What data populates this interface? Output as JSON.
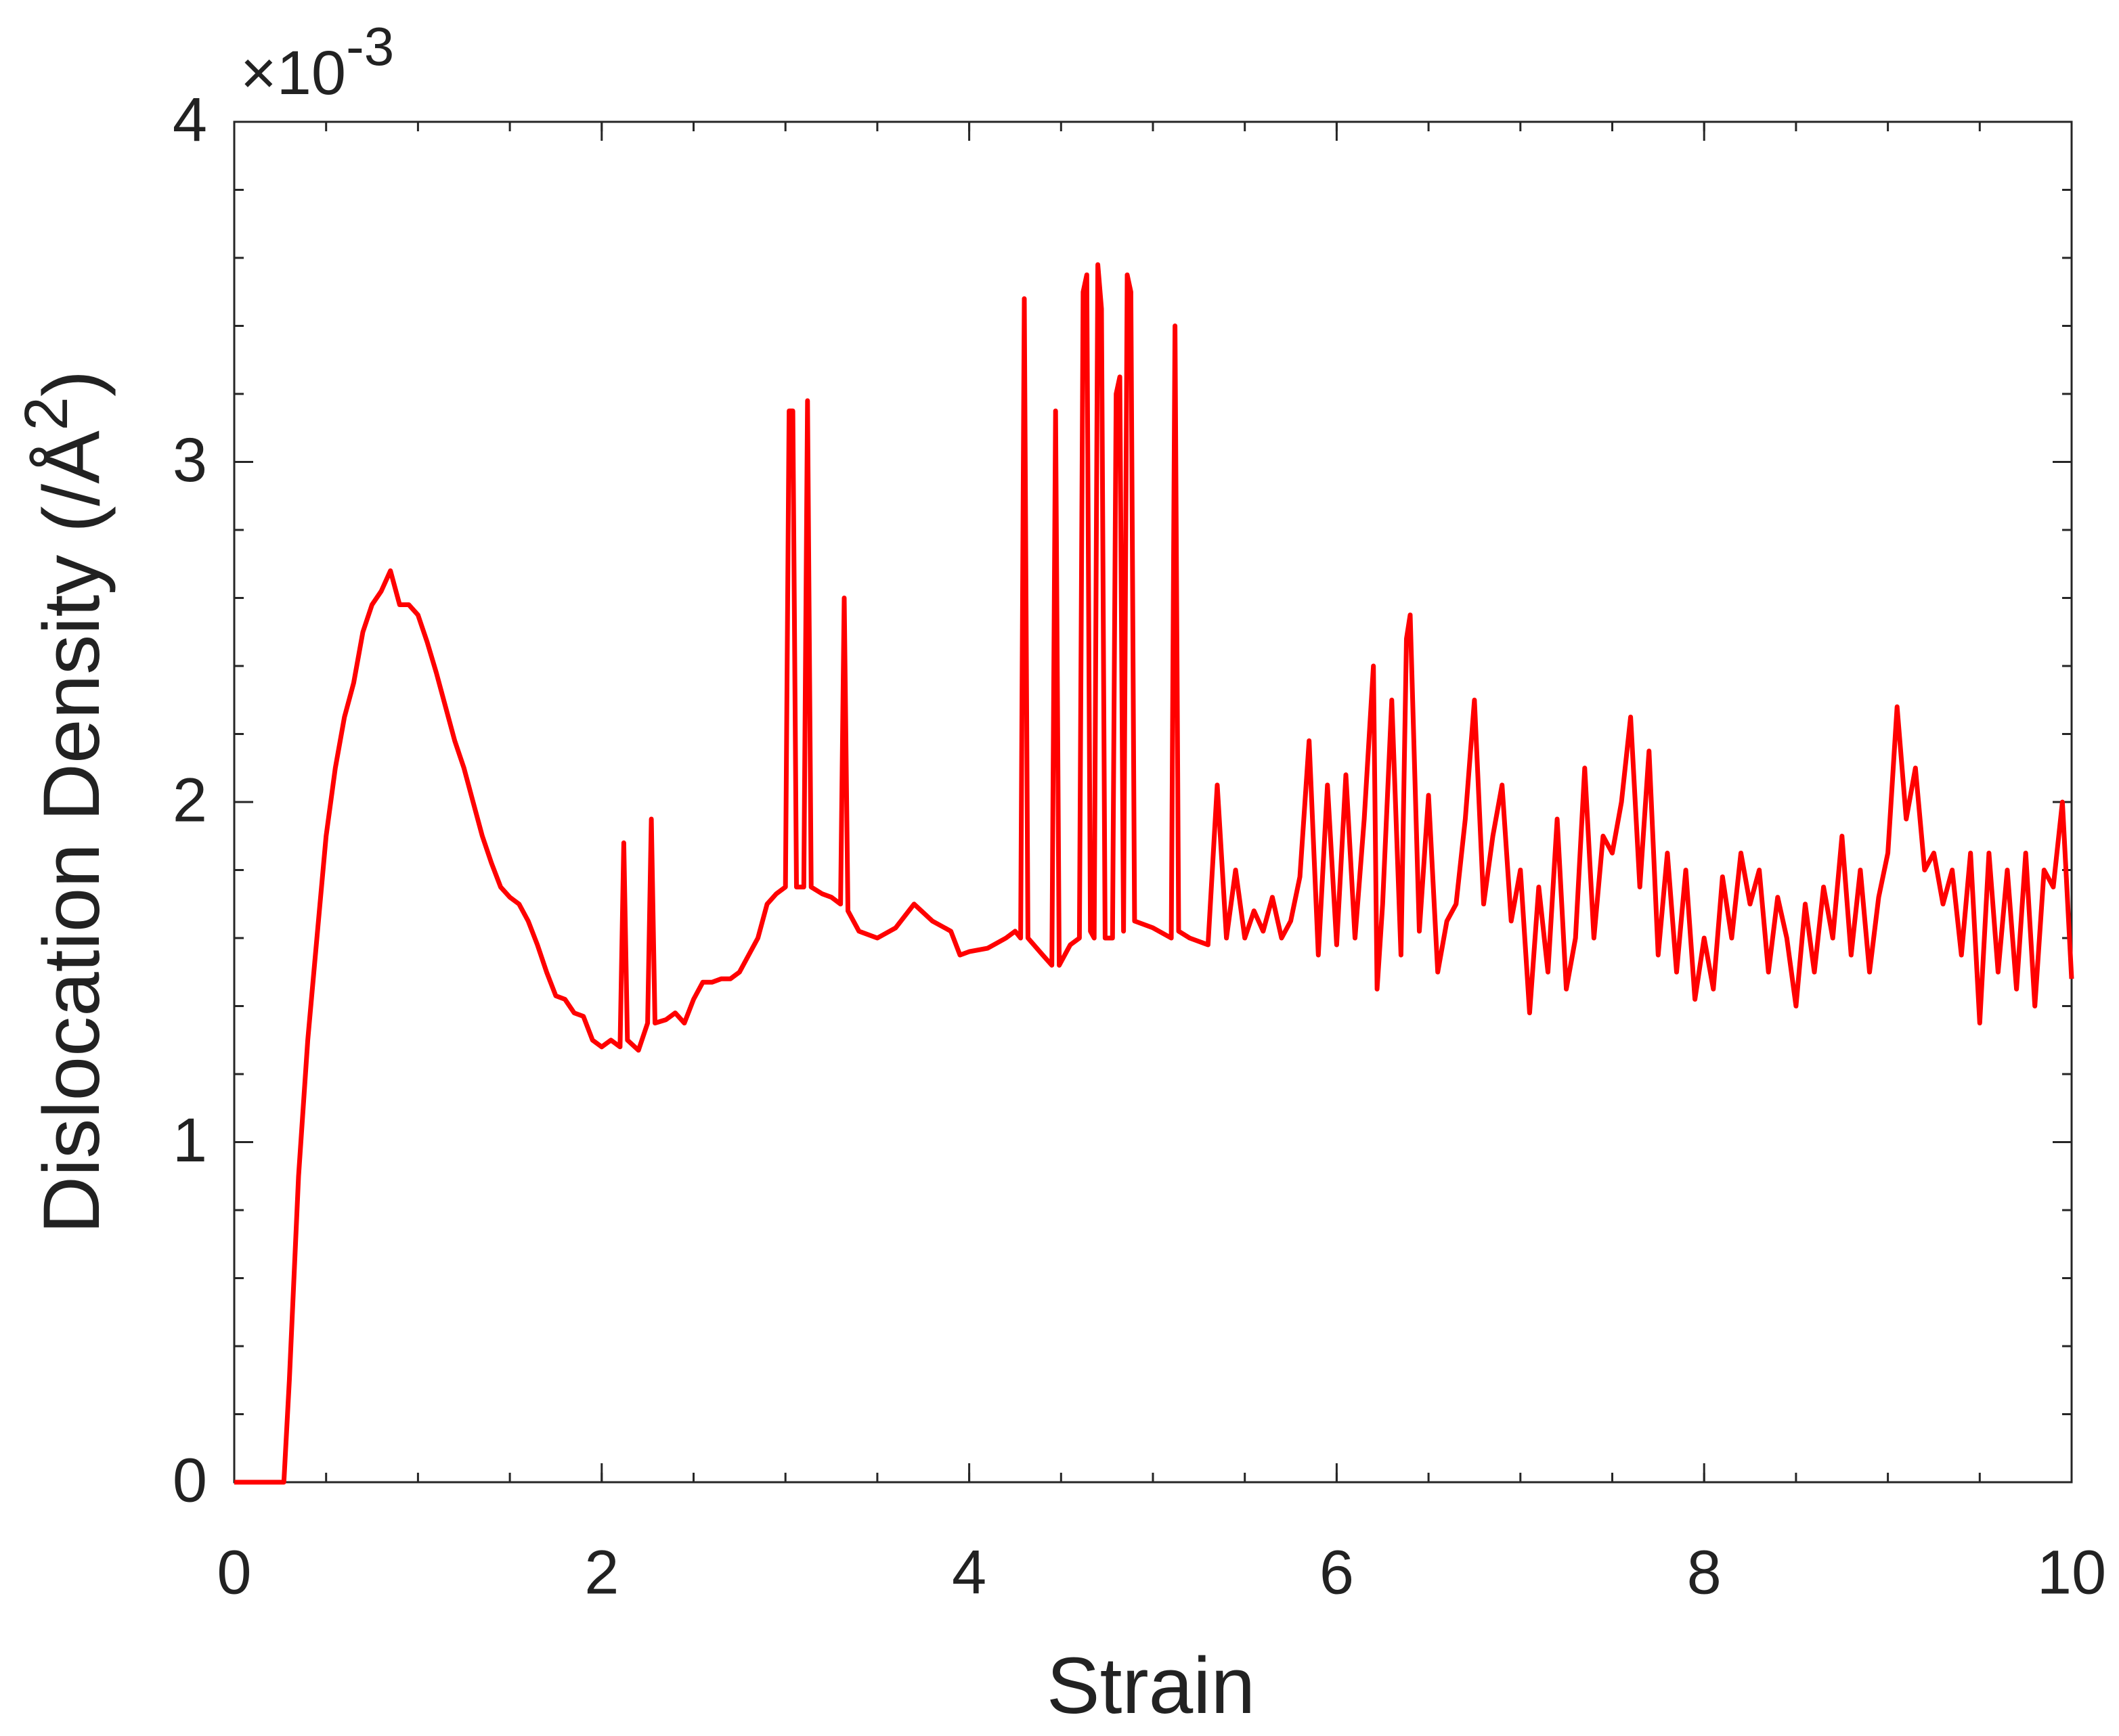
{
  "chart_data": {
    "type": "line",
    "xlabel": "Strain",
    "ylabel": [
      "Dislocation Density (/Å",
      "2",
      ")"
    ],
    "y_exponent": [
      "×10",
      "-3"
    ],
    "x": [
      0,
      0.27,
      0.3,
      0.35,
      0.4,
      0.45,
      0.5,
      0.55,
      0.6,
      0.65,
      0.7,
      0.75,
      0.8,
      0.85,
      0.9,
      0.95,
      1.0,
      1.05,
      1.1,
      1.15,
      1.2,
      1.25,
      1.3,
      1.35,
      1.4,
      1.45,
      1.5,
      1.55,
      1.6,
      1.65,
      1.7,
      1.75,
      1.8,
      1.85,
      1.9,
      1.95,
      2.0,
      2.05,
      2.1,
      2.12,
      2.14,
      2.2,
      2.25,
      2.27,
      2.29,
      2.35,
      2.4,
      2.45,
      2.5,
      2.55,
      2.6,
      2.65,
      2.7,
      2.75,
      2.8,
      2.85,
      2.9,
      2.95,
      3.0,
      3.02,
      3.04,
      3.06,
      3.1,
      3.12,
      3.14,
      3.2,
      3.25,
      3.3,
      3.32,
      3.34,
      3.4,
      3.5,
      3.6,
      3.7,
      3.8,
      3.9,
      3.95,
      4.0,
      4.1,
      4.2,
      4.25,
      4.28,
      4.3,
      4.32,
      4.4,
      4.45,
      4.47,
      4.49,
      4.55,
      4.6,
      4.62,
      4.64,
      4.66,
      4.68,
      4.7,
      4.72,
      4.74,
      4.78,
      4.8,
      4.82,
      4.84,
      4.86,
      4.88,
      4.9,
      5.0,
      5.1,
      5.12,
      5.14,
      5.2,
      5.3,
      5.35,
      5.4,
      5.45,
      5.5,
      5.55,
      5.6,
      5.65,
      5.7,
      5.75,
      5.8,
      5.85,
      5.9,
      5.95,
      6.0,
      6.05,
      6.1,
      6.15,
      6.2,
      6.22,
      6.25,
      6.3,
      6.35,
      6.38,
      6.4,
      6.45,
      6.5,
      6.55,
      6.6,
      6.65,
      6.7,
      6.75,
      6.8,
      6.85,
      6.9,
      6.95,
      7.0,
      7.05,
      7.1,
      7.15,
      7.2,
      7.25,
      7.3,
      7.35,
      7.4,
      7.45,
      7.5,
      7.55,
      7.6,
      7.65,
      7.7,
      7.75,
      7.8,
      7.85,
      7.9,
      7.95,
      8.0,
      8.05,
      8.1,
      8.15,
      8.2,
      8.25,
      8.3,
      8.35,
      8.4,
      8.45,
      8.5,
      8.55,
      8.6,
      8.65,
      8.7,
      8.75,
      8.8,
      8.85,
      8.9,
      8.95,
      9.0,
      9.05,
      9.1,
      9.15,
      9.2,
      9.25,
      9.3,
      9.35,
      9.4,
      9.45,
      9.5,
      9.55,
      9.6,
      9.65,
      9.7,
      9.75,
      9.8,
      9.85,
      9.9,
      9.95,
      10.0
    ],
    "series": [
      {
        "color": "#ff0000",
        "values": [
          0,
          0,
          0.3,
          0.9,
          1.3,
          1.6,
          1.9,
          2.1,
          2.25,
          2.35,
          2.5,
          2.58,
          2.62,
          2.68,
          2.58,
          2.58,
          2.55,
          2.47,
          2.38,
          2.28,
          2.18,
          2.1,
          2.0,
          1.9,
          1.82,
          1.75,
          1.72,
          1.7,
          1.65,
          1.58,
          1.5,
          1.43,
          1.42,
          1.38,
          1.37,
          1.3,
          1.28,
          1.3,
          1.28,
          1.88,
          1.3,
          1.27,
          1.35,
          1.95,
          1.35,
          1.36,
          1.38,
          1.35,
          1.42,
          1.47,
          1.47,
          1.48,
          1.48,
          1.5,
          1.55,
          1.6,
          1.7,
          1.73,
          1.75,
          3.15,
          3.15,
          1.75,
          1.75,
          3.18,
          1.75,
          1.73,
          1.72,
          1.7,
          2.6,
          1.68,
          1.62,
          1.6,
          1.63,
          1.7,
          1.65,
          1.62,
          1.55,
          1.56,
          1.57,
          1.6,
          1.62,
          1.6,
          3.48,
          1.6,
          1.55,
          1.52,
          3.15,
          1.52,
          1.58,
          1.6,
          3.5,
          3.55,
          1.62,
          1.6,
          3.58,
          3.45,
          1.6,
          1.6,
          3.2,
          3.25,
          1.62,
          3.55,
          3.5,
          1.65,
          1.63,
          1.6,
          3.4,
          1.62,
          1.6,
          1.58,
          2.05,
          1.6,
          1.8,
          1.6,
          1.68,
          1.62,
          1.72,
          1.6,
          1.65,
          1.78,
          2.18,
          1.55,
          2.05,
          1.58,
          2.08,
          1.6,
          1.95,
          2.4,
          1.45,
          1.7,
          2.3,
          1.55,
          2.48,
          2.55,
          1.62,
          2.02,
          1.5,
          1.65,
          1.7,
          1.95,
          2.3,
          1.7,
          1.9,
          2.05,
          1.65,
          1.8,
          1.38,
          1.75,
          1.5,
          1.95,
          1.45,
          1.6,
          2.1,
          1.6,
          1.9,
          1.85,
          2.0,
          2.25,
          1.75,
          2.15,
          1.55,
          1.85,
          1.5,
          1.8,
          1.42,
          1.6,
          1.45,
          1.78,
          1.6,
          1.85,
          1.7,
          1.8,
          1.5,
          1.72,
          1.6,
          1.4,
          1.7,
          1.5,
          1.75,
          1.6,
          1.9,
          1.55,
          1.8,
          1.5,
          1.72,
          1.85,
          2.28,
          1.95,
          2.1,
          1.8,
          1.85,
          1.7,
          1.8,
          1.55,
          1.85,
          1.35,
          1.85,
          1.5,
          1.8,
          1.45,
          1.85,
          1.4,
          1.8,
          1.75,
          2.0,
          1.48
        ]
      }
    ],
    "xlim": [
      0,
      10
    ],
    "xticks": [
      0,
      2,
      4,
      6,
      8,
      10
    ],
    "xminorticks": [
      0,
      0.5,
      1,
      1.5,
      2,
      2.5,
      3,
      3.5,
      4,
      4.5,
      5,
      5.5,
      6,
      6.5,
      7,
      7.5,
      8,
      8.5,
      9,
      9.5,
      10
    ],
    "ylim": [
      0,
      4
    ],
    "yticks": [
      0,
      1,
      2,
      3,
      4
    ],
    "yminorticks": [
      0,
      0.2,
      0.4,
      0.6,
      0.8,
      1,
      1.2,
      1.4,
      1.6,
      1.8,
      2,
      2.2,
      2.4,
      2.6,
      2.8,
      3,
      3.2,
      3.4,
      3.6,
      3.8,
      4
    ],
    "grid": false
  }
}
